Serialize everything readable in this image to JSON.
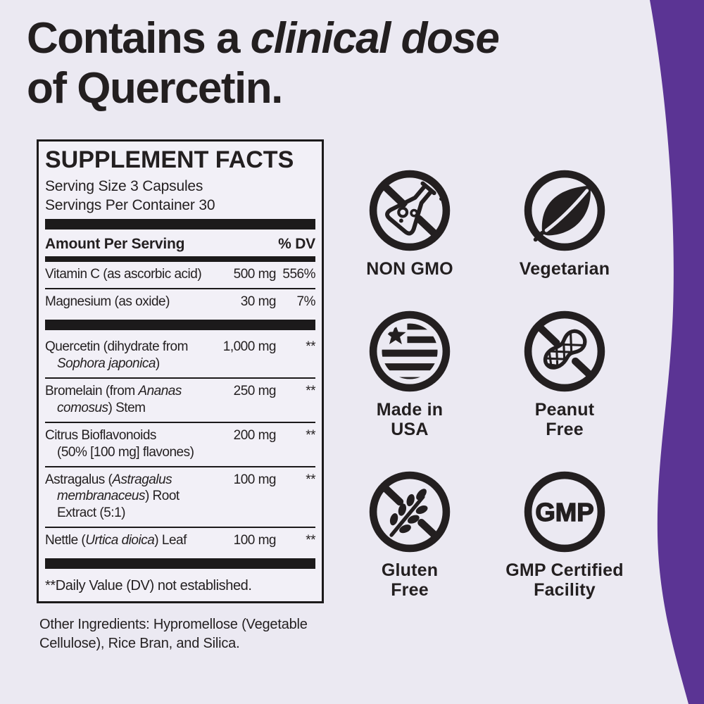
{
  "colors": {
    "background": "#EBE9F2",
    "panel_background": "#F2F0F7",
    "ink": "#231F20",
    "purple": "#5B3494"
  },
  "headline": {
    "prefix": "Contains a ",
    "emphasis": "clinical dose",
    "line2": "of Quercetin."
  },
  "supplement_facts": {
    "title": "SUPPLEMENT FACTS",
    "serving_size": "Serving Size 3 Capsules",
    "servings_per_container": "Servings Per Container 30",
    "amount_header": "Amount Per Serving",
    "dv_header": "% DV",
    "rows": [
      {
        "name": [
          {
            "t": "Vitamin C (as ascorbic acid)"
          }
        ],
        "amount": "500 mg",
        "dv": "556%"
      },
      {
        "divider": "thin",
        "name": [
          {
            "t": "Magnesium (as oxide)"
          }
        ],
        "amount": "30 mg",
        "dv": "7%"
      },
      {
        "divider": "thick",
        "name": [
          {
            "t": "Quercetin (dihydrate from\n"
          },
          {
            "t": "Sophora japonica",
            "i": true
          },
          {
            "t": ")"
          }
        ],
        "amount": "1,000 mg",
        "dv": "**"
      },
      {
        "divider": "thin",
        "name": [
          {
            "t": "Bromelain (from "
          },
          {
            "t": "Ananas\ncomosus",
            "i": true
          },
          {
            "t": ") Stem"
          }
        ],
        "amount": "250 mg",
        "dv": "**"
      },
      {
        "divider": "thin",
        "name": [
          {
            "t": "Citrus Bioflavonoids\n(50% [100 mg] flavones)"
          }
        ],
        "amount": "200 mg",
        "dv": "**"
      },
      {
        "divider": "thin",
        "name": [
          {
            "t": "Astragalus ("
          },
          {
            "t": "Astragalus\nmembranaceus",
            "i": true
          },
          {
            "t": ") Root\nExtract (5:1)"
          }
        ],
        "amount": "100 mg",
        "dv": "**"
      },
      {
        "divider": "thin",
        "name": [
          {
            "t": "Nettle ("
          },
          {
            "t": "Urtica dioica",
            "i": true
          },
          {
            "t": ") Leaf"
          }
        ],
        "amount": "100 mg",
        "dv": "**"
      }
    ],
    "footnote": "**Daily Value (DV) not established.",
    "other_ingredients": "Other Ingredients: Hypromellose (Vegetable Cellulose), Rice Bran, and Silica."
  },
  "badges": [
    {
      "icon": "no-gmo-flask-icon",
      "label": "NON GMO"
    },
    {
      "icon": "vegetarian-leaf-icon",
      "label": "Vegetarian"
    },
    {
      "icon": "made-in-usa-flag-icon",
      "label": "Made in\nUSA"
    },
    {
      "icon": "no-peanut-icon",
      "label": "Peanut\nFree"
    },
    {
      "icon": "no-wheat-icon",
      "label": "Gluten\nFree"
    },
    {
      "icon": "gmp-circle-icon",
      "label": "GMP Certified\nFacility",
      "icon_text": "GMP"
    }
  ]
}
